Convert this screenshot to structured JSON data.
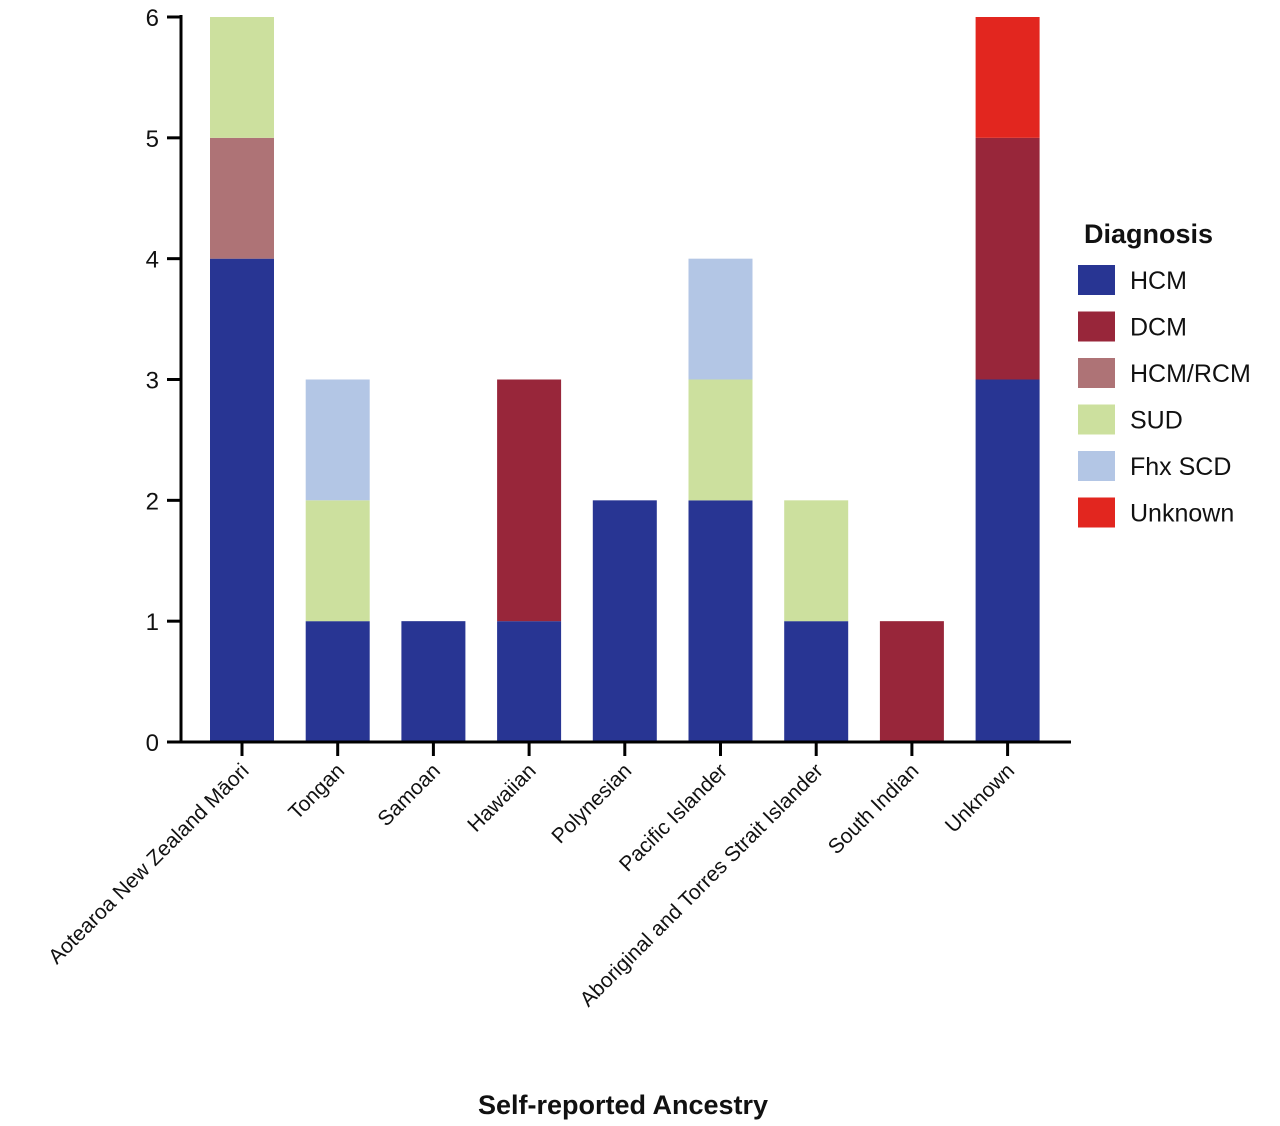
{
  "chart_data": {
    "type": "bar",
    "stacked": true,
    "categories": [
      "Aotearoa New Zealand Māori",
      "Tongan",
      "Samoan",
      "Hawaiian",
      "Polynesian",
      "Pacific Islander",
      "Aboriginal and Torres Strait Islander",
      "South Indian",
      "Unknown"
    ],
    "series": [
      {
        "name": "HCM",
        "color": "#283593",
        "values": [
          4,
          1,
          1,
          1,
          2,
          2,
          1,
          0,
          3
        ]
      },
      {
        "name": "DCM",
        "color": "#98263A",
        "values": [
          0,
          0,
          0,
          2,
          0,
          0,
          0,
          1,
          2
        ]
      },
      {
        "name": "HCM/RCM",
        "color": "#AE7376",
        "values": [
          1,
          0,
          0,
          0,
          0,
          0,
          0,
          0,
          0
        ]
      },
      {
        "name": "SUD",
        "color": "#CCE09E",
        "values": [
          1,
          1,
          0,
          0,
          0,
          1,
          1,
          0,
          0
        ]
      },
      {
        "name": "Fhx SCD",
        "color": "#B3C6E5",
        "values": [
          0,
          1,
          0,
          0,
          0,
          1,
          0,
          0,
          0
        ]
      },
      {
        "name": "Unknown",
        "color": "#E2261F",
        "values": [
          0,
          0,
          0,
          0,
          0,
          0,
          0,
          0,
          1
        ]
      }
    ],
    "xlabel": "Self-reported Ancestry",
    "ylabel": "",
    "ylim": [
      0,
      6
    ],
    "yticks": [
      "0",
      "1",
      "2",
      "3",
      "4",
      "5",
      "6"
    ],
    "legend_title": "Diagnosis",
    "legend_position": "right",
    "grid": false
  }
}
